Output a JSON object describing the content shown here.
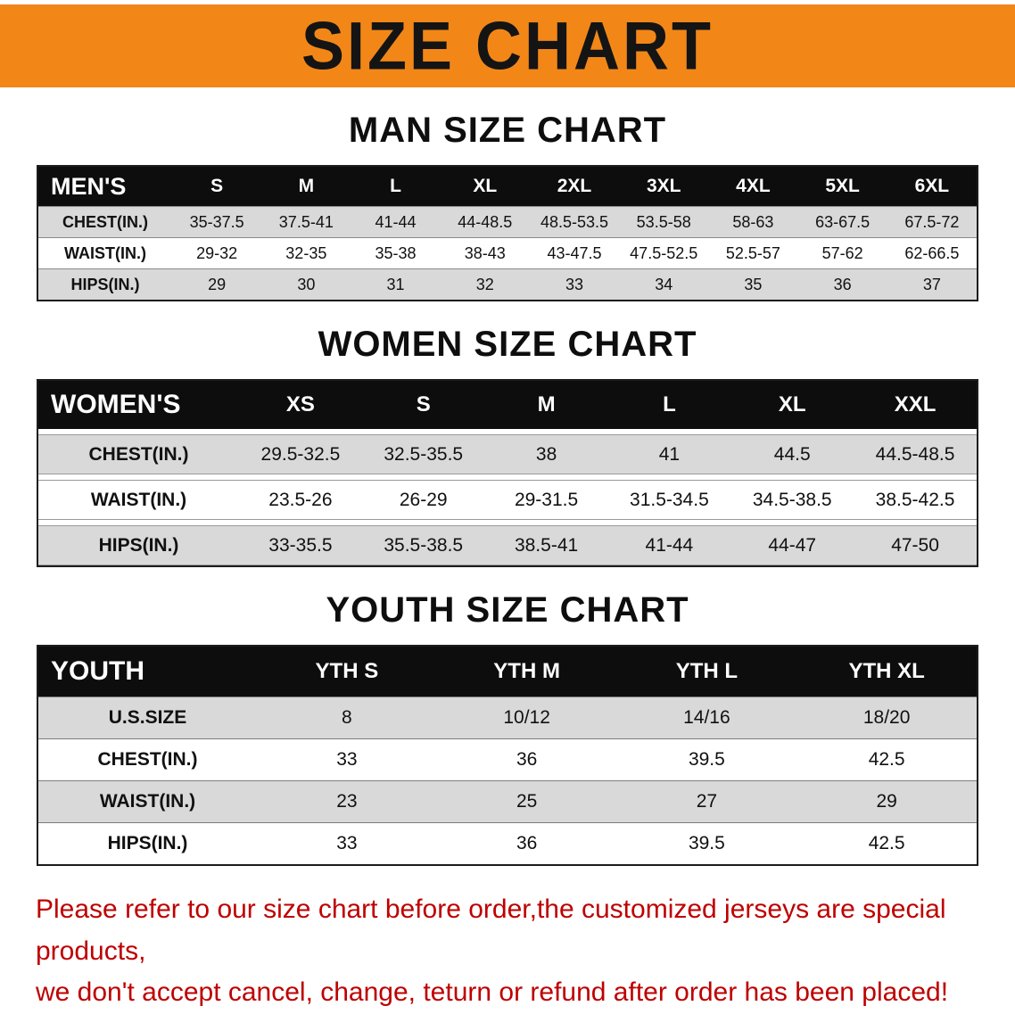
{
  "banner": {
    "title": "SIZE CHART"
  },
  "colors": {
    "banner_bg": "#F28718",
    "header_bg": "#0D0D0D",
    "row_shade": "#D9D9D9",
    "footer_red": "#BE0000"
  },
  "sections": [
    {
      "heading": "MAN SIZE CHART",
      "table": {
        "header_label": "MEN'S",
        "columns": [
          "S",
          "M",
          "L",
          "XL",
          "2XL",
          "3XL",
          "4XL",
          "5XL",
          "6XL"
        ],
        "rows": [
          {
            "label": "CHEST(IN.)",
            "values": [
              "35-37.5",
              "37.5-41",
              "41-44",
              "44-48.5",
              "48.5-53.5",
              "53.5-58",
              "58-63",
              "63-67.5",
              "67.5-72"
            ]
          },
          {
            "label": "WAIST(IN.)",
            "values": [
              "29-32",
              "32-35",
              "35-38",
              "38-43",
              "43-47.5",
              "47.5-52.5",
              "52.5-57",
              "57-62",
              "62-66.5"
            ]
          },
          {
            "label": "HIPS(IN.)",
            "values": [
              "29",
              "30",
              "31",
              "32",
              "33",
              "34",
              "35",
              "36",
              "37"
            ]
          }
        ]
      }
    },
    {
      "heading": "WOMEN SIZE CHART",
      "table": {
        "header_label": "WOMEN'S",
        "columns": [
          "XS",
          "S",
          "M",
          "L",
          "XL",
          "XXL"
        ],
        "rows": [
          {
            "label": "CHEST(IN.)",
            "values": [
              "29.5-32.5",
              "32.5-35.5",
              "38",
              "41",
              "44.5",
              "44.5-48.5"
            ]
          },
          {
            "label": "WAIST(IN.)",
            "values": [
              "23.5-26",
              "26-29",
              "29-31.5",
              "31.5-34.5",
              "34.5-38.5",
              "38.5-42.5"
            ]
          },
          {
            "label": "HIPS(IN.)",
            "values": [
              "33-35.5",
              "35.5-38.5",
              "38.5-41",
              "41-44",
              "44-47",
              "47-50"
            ]
          }
        ]
      }
    },
    {
      "heading": "YOUTH SIZE CHART",
      "table": {
        "header_label": "YOUTH",
        "columns": [
          "YTH S",
          "YTH M",
          "YTH L",
          "YTH XL"
        ],
        "rows": [
          {
            "label": "U.S.SIZE",
            "values": [
              "8",
              "10/12",
              "14/16",
              "18/20"
            ]
          },
          {
            "label": "CHEST(IN.)",
            "values": [
              "33",
              "36",
              "39.5",
              "42.5"
            ]
          },
          {
            "label": "WAIST(IN.)",
            "values": [
              "23",
              "25",
              "27",
              "29"
            ]
          },
          {
            "label": "HIPS(IN.)",
            "values": [
              "33",
              "36",
              "39.5",
              "42.5"
            ]
          }
        ]
      }
    }
  ],
  "footer": {
    "lines": [
      "Please refer to our size chart before order,the customized jerseys are special products,",
      "we don't accept cancel, change, teturn or refund after order has been placed!"
    ]
  }
}
